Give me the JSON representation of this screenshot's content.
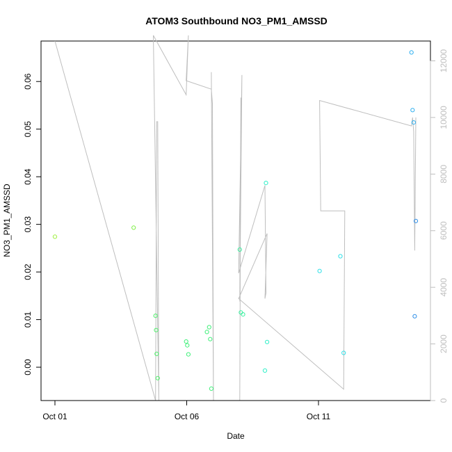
{
  "chart_data": {
    "type": "scatter",
    "title": "ATOM3 Southbound NO3_PM1_AMSSD",
    "xlabel": "Date",
    "ylabel": "NO3_PM1_AMSSD",
    "x_ticks": [
      "Oct 01",
      "Oct 06",
      "Oct 11"
    ],
    "xlim": [
      "2016-10-01T00:00",
      "2016-10-14T18:00"
    ],
    "y_ticks": [
      "0.00",
      "0.01",
      "0.02",
      "0.03",
      "0.04",
      "0.05",
      "0.06"
    ],
    "ylim": [
      -0.007,
      0.0685
    ],
    "right_axis": {
      "ylim": [
        -0.03,
        12700
      ],
      "ticks": [
        "0",
        "2000",
        "4000",
        "6000",
        "8000",
        "10000",
        "12000"
      ],
      "color": "#bebebe"
    },
    "grid": false,
    "point_colors": [
      "#9ff041",
      "#7ff046",
      "#4ff06b",
      "#3ff079",
      "#3af0a0",
      "#30f0c8",
      "#30e0e8",
      "#30b0f0",
      "#2f8fe8"
    ],
    "series": [
      {
        "type": "points",
        "x": [
          "2016-10-01T00:00",
          "2016-10-04T00:00",
          "2016-10-04T20:00",
          "2016-10-04T20:30",
          "2016-10-04T21:00",
          "2016-10-04T22:00",
          "2016-10-06T00:00",
          "2016-10-06T01:00",
          "2016-10-06T02:00",
          "2016-10-06T19:00",
          "2016-10-06T21:00",
          "2016-10-06T22:00",
          "2016-10-06T23:00",
          "2016-10-08T01:00",
          "2016-10-08T02:00",
          "2016-10-08T04:00",
          "2016-10-09T00:00",
          "2016-10-09T01:00",
          "2016-10-09T02:00",
          "2016-10-11T02:00",
          "2016-10-11T21:00",
          "2016-10-12T00:00",
          "2016-10-14T14:00",
          "2016-10-14T15:00",
          "2016-10-14T16:00",
          "2016-10-14T17:00",
          "2016-10-14T18:00"
        ],
        "y": [
          0.0274,
          0.0293,
          0.0108,
          0.0078,
          0.0028,
          -0.0023,
          0.0054,
          0.0046,
          0.0027,
          0.0074,
          0.0084,
          0.0059,
          -0.0045,
          0.0247,
          0.0115,
          0.0111,
          -0.0007,
          0.0387,
          0.0053,
          0.0202,
          0.0233,
          0.003,
          0.0661,
          0.054,
          0.0514,
          0.0107,
          0.0307
        ],
        "color_index": [
          0,
          1,
          2,
          2,
          2,
          2,
          3,
          3,
          3,
          3,
          3,
          3,
          3,
          4,
          4,
          4,
          5,
          5,
          5,
          6,
          6,
          6,
          7,
          7,
          7,
          8,
          8
        ]
      },
      {
        "type": "line",
        "axis": "right",
        "color": "#bebebe",
        "x": [
          "2016-10-01T00:00",
          "2016-10-04T20:00",
          "2016-10-04T21:00",
          "2016-10-04T22:00",
          "2016-10-04T23:00",
          "2016-10-04T18:00",
          "2016-10-06T00:00",
          "2016-10-06T02:00",
          "2016-10-06T00:00",
          "2016-10-06T23:00",
          "2016-10-07T00:00",
          "2016-10-07T01:00",
          "2016-10-06T23:00",
          "2016-10-07T01:00",
          "2016-10-08T01:00",
          "2016-10-08T02:00",
          "2016-10-08T01:00",
          "2016-10-08T03:00",
          "2016-10-08T00:00",
          "2016-10-09T00:00",
          "2016-10-09T01:00",
          "2016-10-09T00:00",
          "2016-10-09T02:00",
          "2016-10-08T00:00",
          "2016-10-12T00:00",
          "2016-10-12T01:00",
          "2016-10-11T03:00",
          "2016-10-11T02:00",
          "2016-10-14T14:00",
          "2016-10-14T15:00",
          "2016-10-14T16:00",
          "2016-10-14T17:00",
          "2016-10-14T18:00"
        ],
        "y": [
          12700,
          0,
          9850,
          9850,
          0,
          12900,
          10800,
          12900,
          11300,
          11000,
          10500,
          0,
          11600,
          0,
          0,
          10700,
          3500,
          11500,
          4500,
          7600,
          3800,
          3600,
          5900,
          3600,
          400,
          6700,
          6700,
          10600,
          9700,
          10000,
          9500,
          5300,
          10000
        ]
      }
    ]
  }
}
